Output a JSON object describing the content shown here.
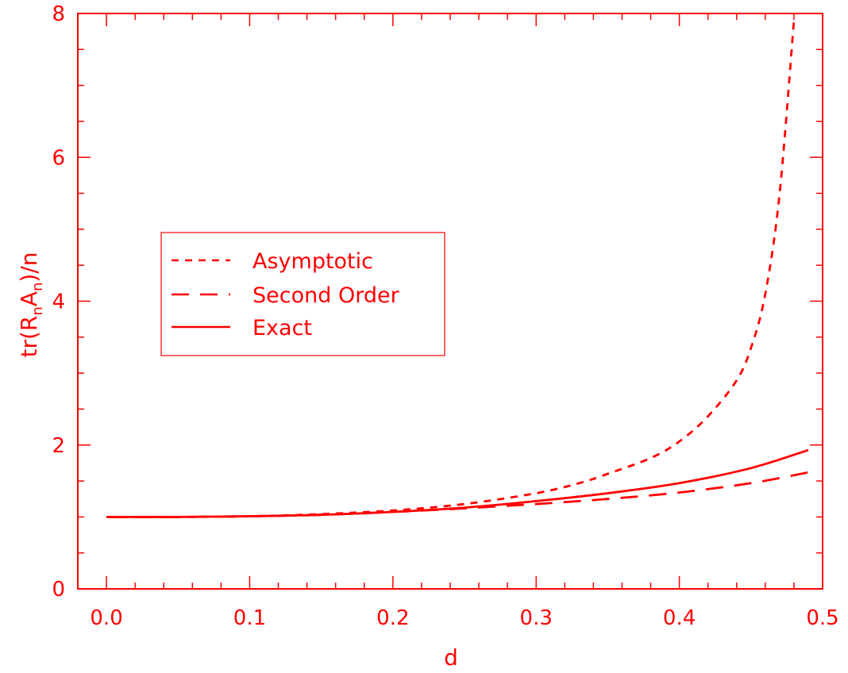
{
  "colors": {
    "ink": "#ff0000",
    "background": "#ffffff"
  },
  "chart_data": {
    "type": "line",
    "xlabel": "d",
    "ylabel": "tr(RₙAₙ)/n",
    "ylabel_parts": [
      "tr(R",
      "n",
      "A",
      "n",
      ")/n"
    ],
    "xlim": [
      -0.02,
      0.5
    ],
    "ylim": [
      0,
      8
    ],
    "xticks": [
      0.0,
      0.1,
      0.2,
      0.3,
      0.4,
      0.5
    ],
    "xtick_labels": [
      "0.0",
      "0.1",
      "0.2",
      "0.3",
      "0.4",
      "0.5"
    ],
    "yticks": [
      0,
      2,
      4,
      6,
      8
    ],
    "ytick_labels": [
      "0",
      "2",
      "4",
      "6",
      "8"
    ],
    "grid": false,
    "legend_position": "upper-left",
    "series": [
      {
        "name": "Asymptotic",
        "style": "short-dash",
        "x": [
          0.0,
          0.05,
          0.1,
          0.15,
          0.2,
          0.25,
          0.3,
          0.33,
          0.35,
          0.38,
          0.4,
          0.42,
          0.44,
          0.45,
          0.46,
          0.47,
          0.48
        ],
        "y": [
          1.0,
          1.0,
          1.01,
          1.04,
          1.09,
          1.18,
          1.33,
          1.47,
          1.6,
          1.82,
          2.05,
          2.4,
          2.9,
          3.35,
          4.1,
          5.5,
          7.9
        ]
      },
      {
        "name": "Second Order",
        "style": "long-dash",
        "x": [
          0.0,
          0.05,
          0.1,
          0.15,
          0.2,
          0.25,
          0.3,
          0.35,
          0.4,
          0.45,
          0.49
        ],
        "y": [
          1.0,
          1.0,
          1.01,
          1.03,
          1.07,
          1.12,
          1.18,
          1.25,
          1.34,
          1.47,
          1.62
        ]
      },
      {
        "name": "Exact",
        "style": "solid",
        "x": [
          0.0,
          0.05,
          0.1,
          0.15,
          0.2,
          0.25,
          0.3,
          0.35,
          0.4,
          0.45,
          0.49
        ],
        "y": [
          1.0,
          1.0,
          1.01,
          1.03,
          1.07,
          1.13,
          1.22,
          1.33,
          1.47,
          1.68,
          1.93
        ]
      }
    ]
  }
}
